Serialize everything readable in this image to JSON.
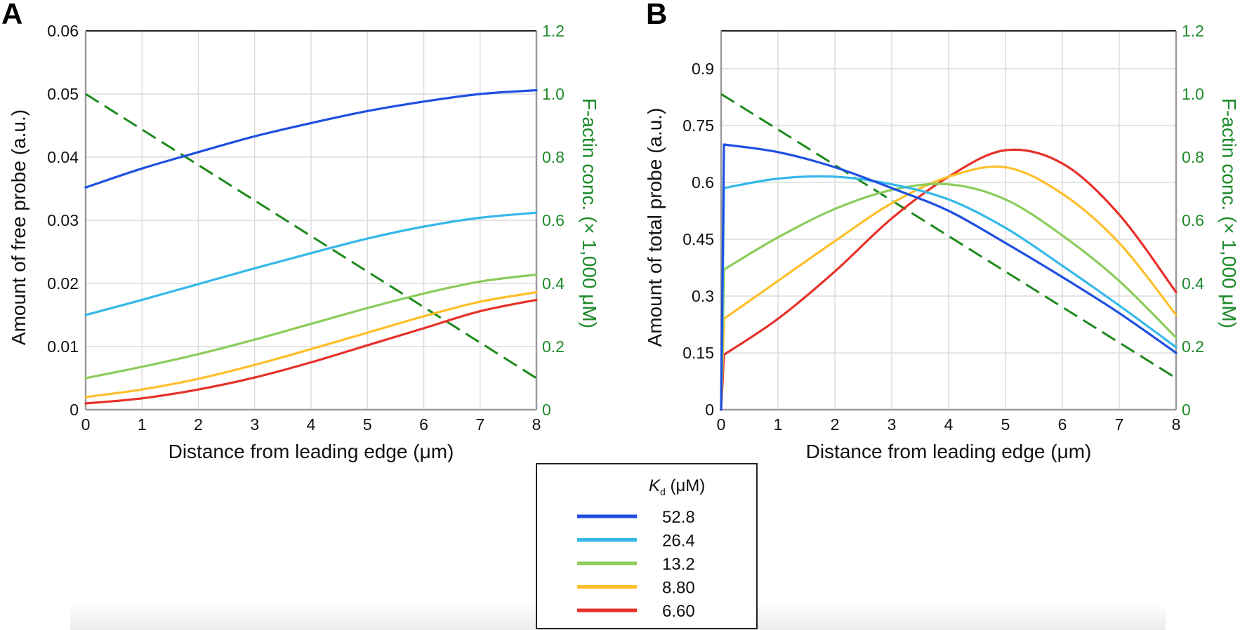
{
  "chart_data": [
    {
      "panel": "A",
      "type": "line",
      "xlabel": "Distance from leading edge (μm)",
      "ylabel": "Amount of free probe (a.u.)",
      "y2label": "F-actin conc. (× 1,000 μM)",
      "xlim": [
        0,
        8
      ],
      "ylim": [
        0,
        0.06
      ],
      "y2lim": [
        0,
        1.2
      ],
      "xticks": [
        "0",
        "1",
        "2",
        "3",
        "4",
        "5",
        "6",
        "7",
        "8"
      ],
      "yticks": [
        "0",
        "0.01",
        "0.02",
        "0.03",
        "0.04",
        "0.05",
        "0.06"
      ],
      "y2ticks": [
        "0",
        "0.2",
        "0.4",
        "0.6",
        "0.8",
        "1.0",
        "1.2"
      ],
      "grid": true,
      "x": [
        0,
        1,
        2,
        3,
        4,
        5,
        6,
        7,
        8
      ],
      "series": [
        {
          "name": "52.8",
          "color": "#1f4fe0",
          "values": [
            0.0352,
            0.0382,
            0.0408,
            0.0433,
            0.0454,
            0.0473,
            0.0488,
            0.05,
            0.0506
          ]
        },
        {
          "name": "26.4",
          "color": "#35b8ea",
          "values": [
            0.015,
            0.0174,
            0.0199,
            0.0224,
            0.0248,
            0.0271,
            0.029,
            0.0304,
            0.0312
          ]
        },
        {
          "name": "13.2",
          "color": "#8ccc5c",
          "values": [
            0.005,
            0.0068,
            0.0088,
            0.0111,
            0.0136,
            0.0161,
            0.0184,
            0.0203,
            0.0214
          ]
        },
        {
          "name": "8.80",
          "color": "#ffbf2a",
          "values": [
            0.002,
            0.0032,
            0.0049,
            0.0071,
            0.0096,
            0.0122,
            0.0148,
            0.0171,
            0.0186
          ]
        },
        {
          "name": "6.60",
          "color": "#e8302a",
          "values": [
            0.001,
            0.0018,
            0.0032,
            0.0051,
            0.0075,
            0.0102,
            0.0129,
            0.0156,
            0.0174
          ]
        }
      ],
      "factin": {
        "axis": "y2",
        "color": "#1e8a1e",
        "style": "dashed",
        "x": [
          0,
          8
        ],
        "values": [
          1.0,
          0.1
        ]
      }
    },
    {
      "panel": "B",
      "type": "line",
      "xlabel": "Distance from leading edge (μm)",
      "ylabel": "Amount of total probe (a.u.)",
      "y2label": "F-actin conc. (× 1,000 μM)",
      "xlim": [
        0,
        8
      ],
      "ylim": [
        0,
        1.0
      ],
      "y2lim": [
        0,
        1.2
      ],
      "xticks": [
        "0",
        "1",
        "2",
        "3",
        "4",
        "5",
        "6",
        "7",
        "8"
      ],
      "yticks": [
        "0",
        "0.15",
        "0.3",
        "0.45",
        "0.6",
        "0.75",
        "0.9"
      ],
      "y2ticks": [
        "0",
        "0.2",
        "0.4",
        "0.6",
        "0.8",
        "1.0",
        "1.2"
      ],
      "grid": true,
      "x": [
        0,
        0.05,
        1,
        2,
        3,
        4,
        5,
        6,
        7,
        8
      ],
      "series": [
        {
          "name": "52.8",
          "color": "#1f4fe0",
          "values": [
            0,
            0.7,
            0.68,
            0.64,
            0.585,
            0.525,
            0.44,
            0.35,
            0.255,
            0.15
          ]
        },
        {
          "name": "26.4",
          "color": "#35b8ea",
          "values": [
            0,
            0.585,
            0.61,
            0.615,
            0.595,
            0.555,
            0.48,
            0.38,
            0.275,
            0.165
          ]
        },
        {
          "name": "13.2",
          "color": "#8ccc5c",
          "values": [
            0,
            0.37,
            0.455,
            0.53,
            0.58,
            0.595,
            0.555,
            0.46,
            0.34,
            0.19
          ]
        },
        {
          "name": "8.80",
          "color": "#ffbf2a",
          "values": [
            0,
            0.24,
            0.34,
            0.445,
            0.545,
            0.615,
            0.64,
            0.57,
            0.44,
            0.25
          ]
        },
        {
          "name": "6.60",
          "color": "#e8302a",
          "values": [
            0,
            0.145,
            0.24,
            0.365,
            0.505,
            0.615,
            0.685,
            0.65,
            0.515,
            0.31
          ]
        }
      ],
      "factin": {
        "axis": "y2",
        "color": "#1e8a1e",
        "style": "dashed",
        "x": [
          0,
          8
        ],
        "values": [
          1.0,
          0.1
        ]
      }
    }
  ],
  "legend": {
    "title_symbol": "K",
    "title_subscript": "d",
    "title_unit": " (μM)",
    "entries": [
      {
        "label": "52.8",
        "color": "#1f4fe0"
      },
      {
        "label": "26.4",
        "color": "#35b8ea"
      },
      {
        "label": "13.2",
        "color": "#8ccc5c"
      },
      {
        "label": "8.80",
        "color": "#ffbf2a"
      },
      {
        "label": "6.60",
        "color": "#e8302a"
      }
    ]
  }
}
